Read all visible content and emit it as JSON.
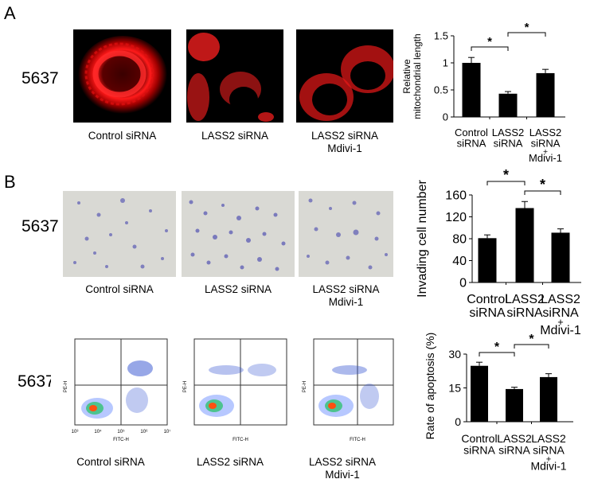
{
  "panels": {
    "A": {
      "letter": "A",
      "cell_line": "5637",
      "images": [
        {
          "caption_line1": "Control siRNA",
          "caption_line2": ""
        },
        {
          "caption_line1": "LASS2 siRNA",
          "caption_line2": ""
        },
        {
          "caption_line1": "LASS2 siRNA",
          "caption_line2": "Mdivi-1"
        }
      ]
    },
    "B": {
      "letter": "B",
      "invasion_cell_line": "5637",
      "invasion_images": [
        {
          "caption_line1": "Control siRNA",
          "caption_line2": ""
        },
        {
          "caption_line1": "LASS2 siRNA",
          "caption_line2": ""
        },
        {
          "caption_line1": "LASS2 siRNA",
          "caption_line2": "Mdivi-1"
        }
      ],
      "flow_cell_line": "5637",
      "flow_plots": [
        {
          "caption_line1": "Control siRNA",
          "caption_line2": ""
        },
        {
          "caption_line1": "LASS2 siRNA",
          "caption_line2": ""
        },
        {
          "caption_line1": "LASS2 siRNA",
          "caption_line2": "Mdivi-1"
        }
      ],
      "flow_axes": {
        "xlabel": "FITC-H",
        "ylabel": "PE-H",
        "xticks": [
          "10³",
          "10⁴",
          "10⁵",
          "10⁶",
          "10⁷"
        ],
        "yticks": [
          "10²",
          "10³",
          "10⁴",
          "10⁵",
          "10⁶"
        ]
      }
    }
  },
  "chart_data": [
    {
      "type": "bar",
      "title": "",
      "ylabel": "Relative mitochondrial length",
      "ylabel_line1": "Relative",
      "ylabel_line2": "mitochondrial length",
      "categories": [
        "Control siRNA",
        "LASS2 siRNA",
        "LASS2 siRNA + Mdivi-1"
      ],
      "category_lines": [
        [
          "Control",
          "siRNA"
        ],
        [
          "LASS2",
          "siRNA"
        ],
        [
          "LASS2",
          "siRNA",
          "+",
          "Mdivi-1"
        ]
      ],
      "values": [
        1.0,
        0.43,
        0.81
      ],
      "errors": [
        0.1,
        0.04,
        0.07
      ],
      "yticks": [
        "0",
        "0.5",
        "1",
        "1.5"
      ],
      "ylim": [
        0,
        1.5
      ],
      "significance": [
        {
          "from": 0,
          "to": 1,
          "label": "*"
        },
        {
          "from": 1,
          "to": 2,
          "label": "*"
        }
      ]
    },
    {
      "type": "bar",
      "title": "",
      "ylabel": "Invading cell number",
      "categories": [
        "Control siRNA",
        "LASS2 siRNA",
        "LASS2 siRNA + Mdivi-1"
      ],
      "category_lines": [
        [
          "Control",
          "siRNA"
        ],
        [
          "LASS2",
          "siRNA"
        ],
        [
          "LASS2",
          "siRNA",
          "+",
          "Mdivi-1"
        ]
      ],
      "values": [
        81,
        136,
        91
      ],
      "errors": [
        6,
        12,
        7
      ],
      "yticks": [
        "0",
        "40",
        "80",
        "120",
        "160"
      ],
      "ylim": [
        0,
        160
      ],
      "significance": [
        {
          "from": 0,
          "to": 1,
          "label": "*"
        },
        {
          "from": 1,
          "to": 2,
          "label": "*"
        }
      ]
    },
    {
      "type": "bar",
      "title": "",
      "ylabel": "Rate of apoptosis (%)",
      "categories": [
        "Control siRNA",
        "LASS2 siRNA",
        "LASS2 siRNA + Mdivi-1"
      ],
      "category_lines": [
        [
          "Control",
          "siRNA"
        ],
        [
          "LASS2",
          "siRNA"
        ],
        [
          "LASS2",
          "siRNA",
          "+",
          "Mdivi-1"
        ]
      ],
      "values": [
        24.8,
        14.5,
        19.8
      ],
      "errors": [
        1.6,
        0.8,
        1.5
      ],
      "yticks": [
        "0",
        "15",
        "30"
      ],
      "ylim": [
        0,
        30
      ],
      "significance": [
        {
          "from": 0,
          "to": 1,
          "label": "*"
        },
        {
          "from": 1,
          "to": 2,
          "label": "*"
        }
      ]
    }
  ]
}
